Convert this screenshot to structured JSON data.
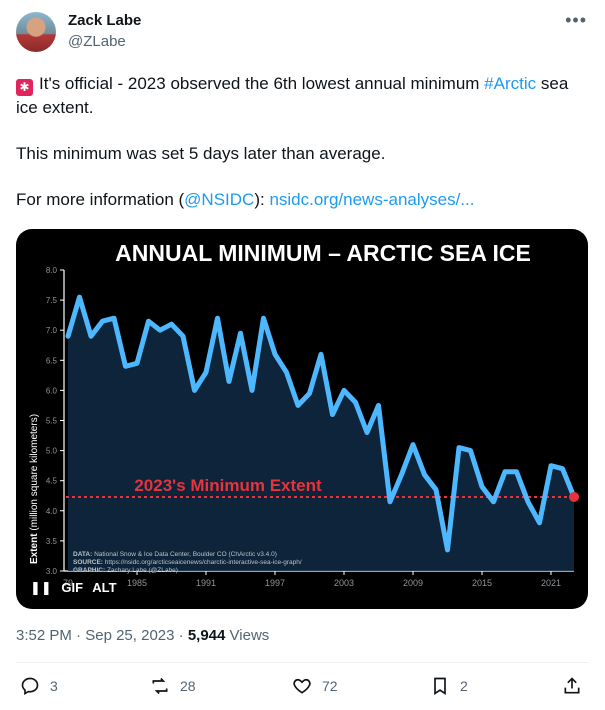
{
  "author": {
    "name": "Zack Labe",
    "handle": "@ZLabe"
  },
  "menu_icon": "more-icon",
  "post": {
    "emoji": "siren-icon",
    "line1_pre": "It's official - 2023 observed the 6th lowest annual minimum ",
    "hashtag": "#Arctic",
    "line1_post": " sea ice extent.",
    "line2": "This minimum was set 5 days later than average.",
    "line3_pre": "For more information (",
    "mention": "@NSIDC",
    "line3_mid": "): ",
    "url": "nsidc.org/news-analyses/..."
  },
  "media": {
    "gif_label": "GIF",
    "alt_label": "ALT"
  },
  "chart_data": {
    "type": "line",
    "title": "ANNUAL MINIMUM – ARCTIC SEA ICE",
    "ylabel_bold": "Extent",
    "ylabel_rest": " (million square kilometers)",
    "ylim": [
      3.0,
      8.0
    ],
    "yticks": [
      "3.0",
      "3.5",
      "4.0",
      "4.5",
      "5.0",
      "5.5",
      "6.0",
      "6.5",
      "7.0",
      "7.5",
      "8.0"
    ],
    "xlim": [
      1979,
      2023
    ],
    "xticks": [
      "1985",
      "1991",
      "1997",
      "2003",
      "2009",
      "2015",
      "2021"
    ],
    "x_start_label": "79",
    "x": [
      1979,
      1980,
      1981,
      1982,
      1983,
      1984,
      1985,
      1986,
      1987,
      1988,
      1989,
      1990,
      1991,
      1992,
      1993,
      1994,
      1995,
      1996,
      1997,
      1998,
      1999,
      2000,
      2001,
      2002,
      2003,
      2004,
      2005,
      2006,
      2007,
      2008,
      2009,
      2010,
      2011,
      2012,
      2013,
      2014,
      2015,
      2016,
      2017,
      2018,
      2019,
      2020,
      2021,
      2022,
      2023
    ],
    "values": [
      6.9,
      7.55,
      6.9,
      7.15,
      7.2,
      6.4,
      6.45,
      7.15,
      7.0,
      7.1,
      6.9,
      6.0,
      6.3,
      7.2,
      6.15,
      6.95,
      6.0,
      7.2,
      6.6,
      6.3,
      5.75,
      5.95,
      6.6,
      5.6,
      6.0,
      5.8,
      5.3,
      5.75,
      4.15,
      4.6,
      5.1,
      4.6,
      4.35,
      3.35,
      5.05,
      5.0,
      4.4,
      4.15,
      4.65,
      4.65,
      4.15,
      3.8,
      4.75,
      4.7,
      4.23
    ],
    "reference_value": 4.23,
    "reference_label": "2023's Minimum Extent",
    "line_color": "#4db8ff",
    "reference_color": "#e8323c",
    "background": "#000000",
    "credits": [
      {
        "bold": "DATA:",
        "text": " National Snow & Ice Data Center, Boulder CO (ChArctic v3.4.0)"
      },
      {
        "bold": "SOURCE:",
        "text": " https://nsidc.org/arcticseaicenews/charctic-interactive-sea-ice-graph/"
      },
      {
        "bold": "GRAPHIC:",
        "text": " Zachary Labe (@ZLabe)"
      }
    ]
  },
  "meta": {
    "time": "3:52 PM",
    "date": "Sep 25, 2023",
    "sep": "·",
    "views_count": "5,944",
    "views_label": "Views"
  },
  "actions": {
    "replies": "3",
    "reposts": "28",
    "likes": "72",
    "bookmarks": "2"
  }
}
